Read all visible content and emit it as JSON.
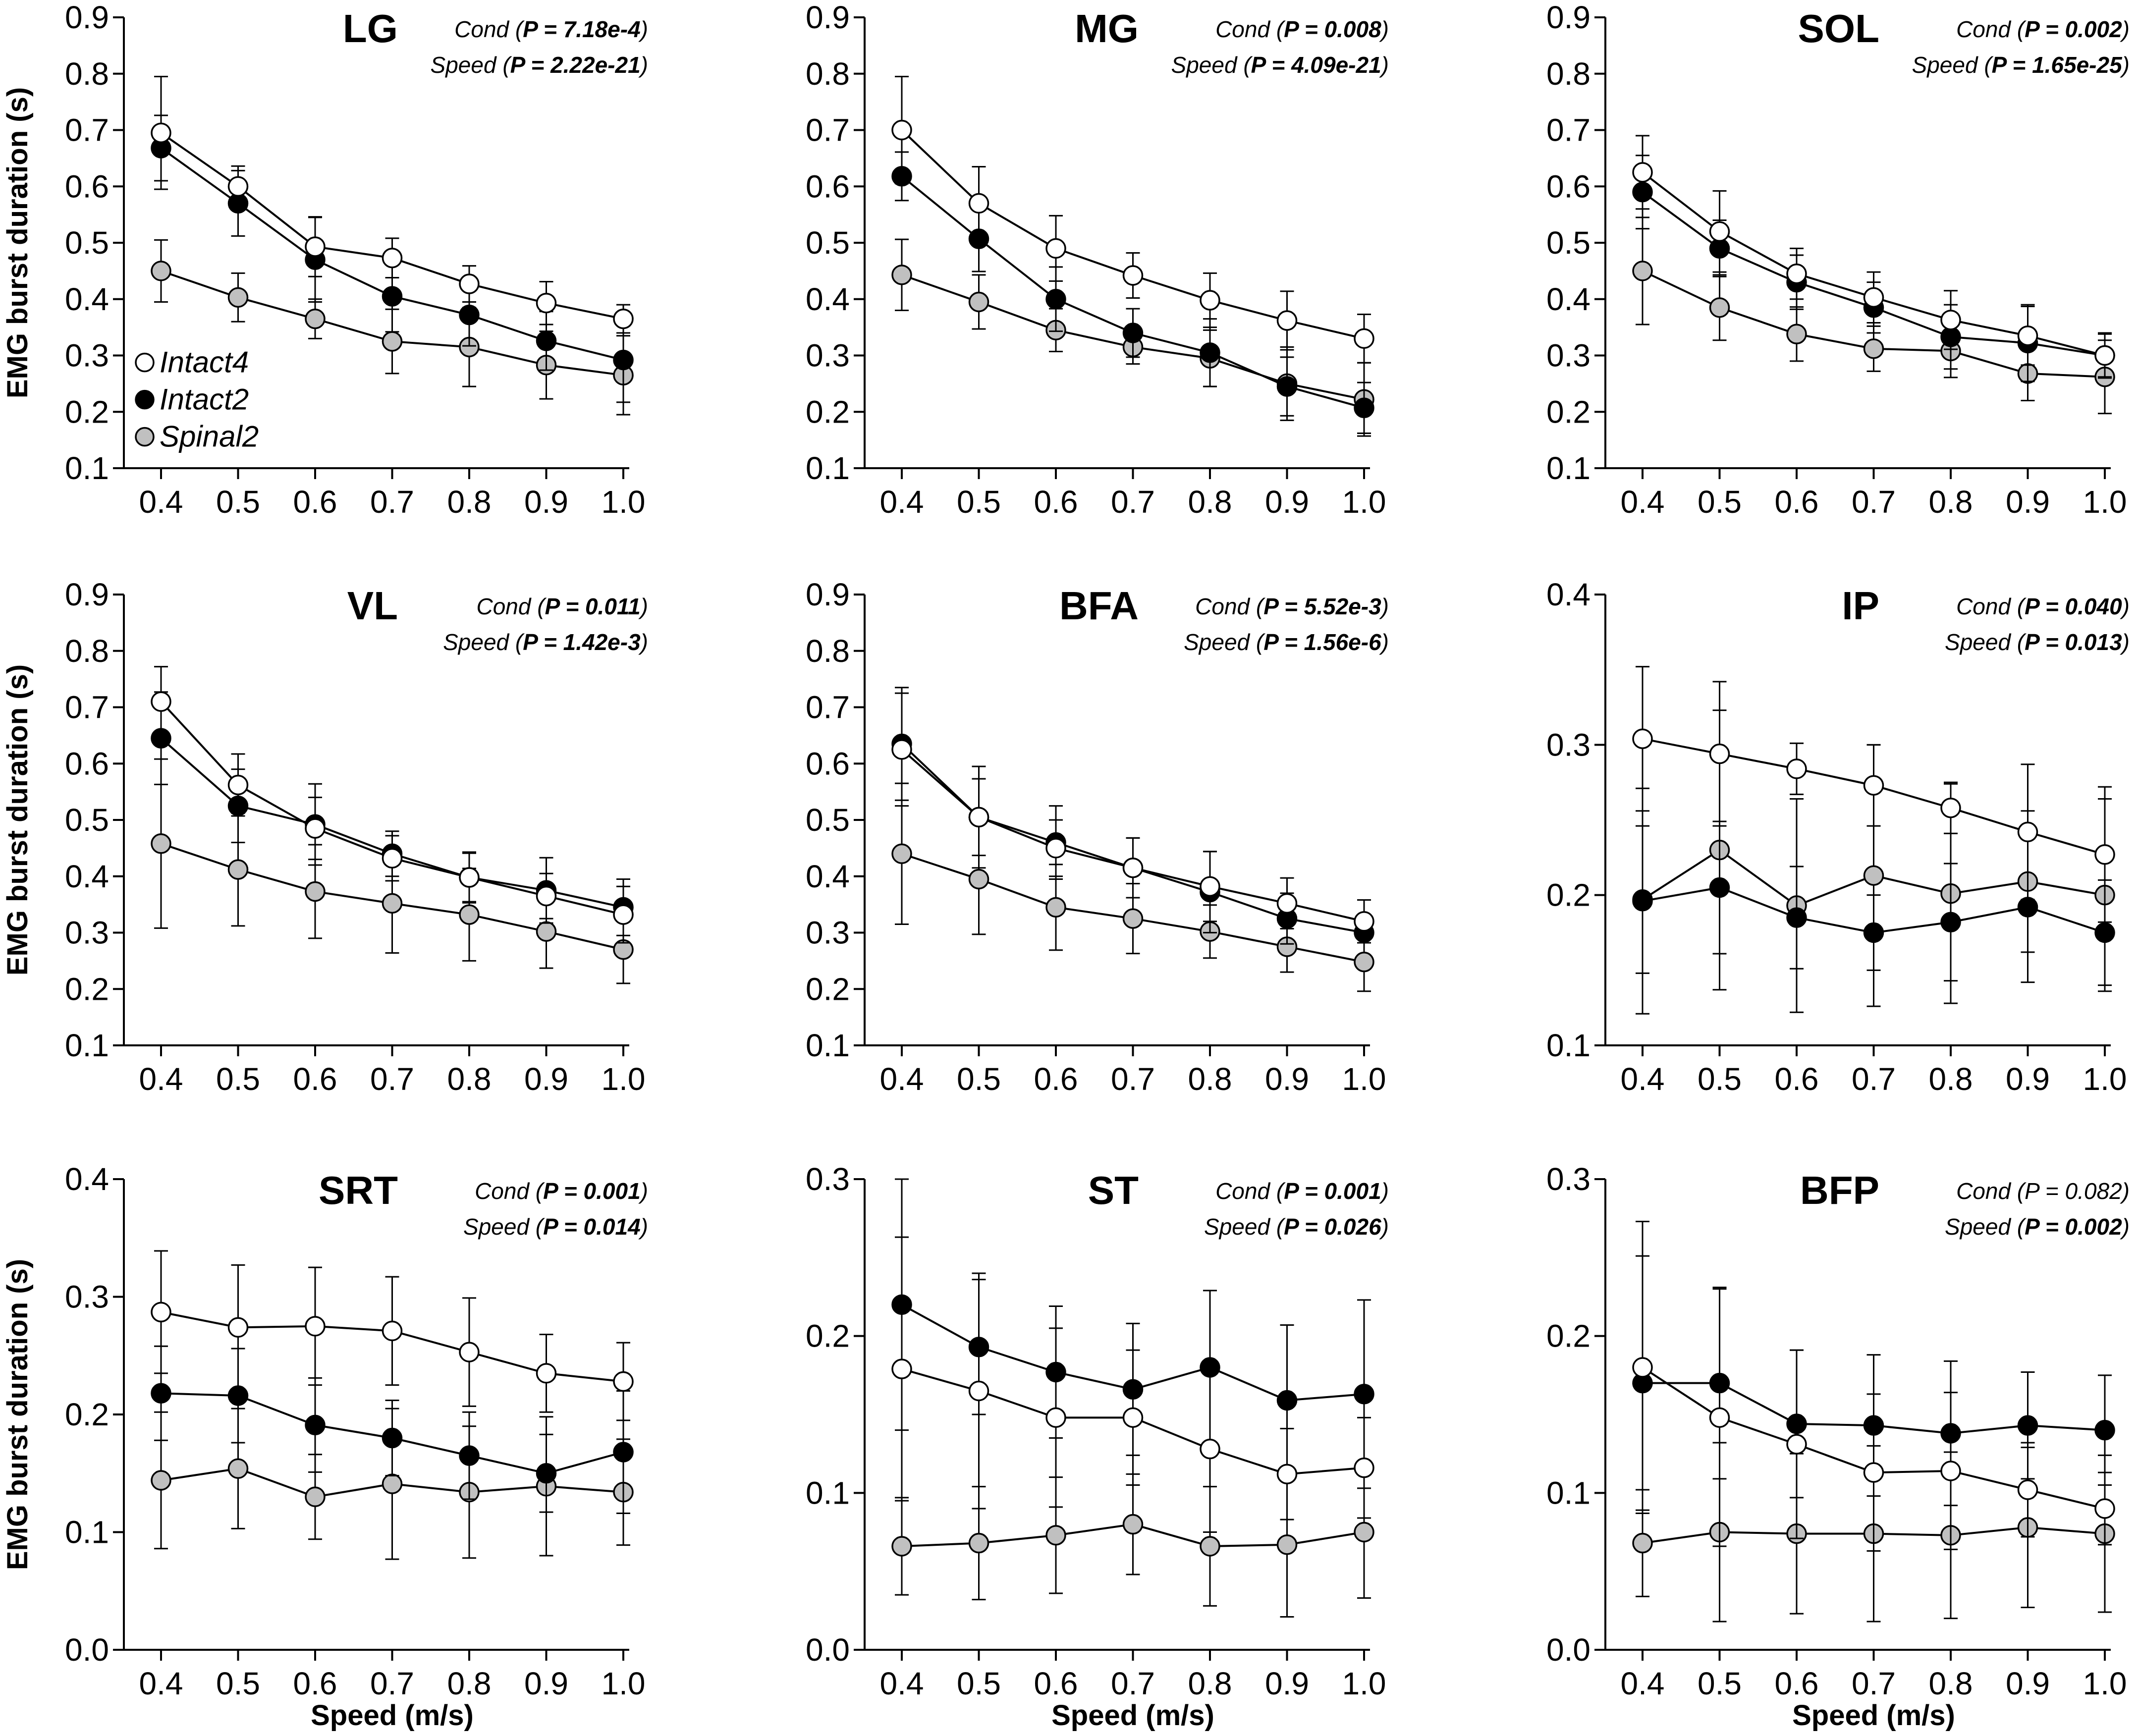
{
  "figure": {
    "y_axis_label": "EMG burst duration (s)",
    "x_axis_label": "Speed (m/s)"
  },
  "legend": [
    {
      "name": "Intact4",
      "fill": "#ffffff"
    },
    {
      "name": "Intact2",
      "fill": "#000000"
    },
    {
      "name": "Spinal2",
      "fill": "#c0c0c0"
    }
  ],
  "chart_data": [
    {
      "type": "line",
      "title": "LG",
      "cond_p": "7.18e-4",
      "speed_p": "2.22e-21",
      "cond_bold": true,
      "speed_bold": true,
      "xlabel": "",
      "ylabel": "EMG burst duration (s)",
      "ylim": [
        0.1,
        0.9
      ],
      "yticks": [
        "0.1",
        "0.2",
        "0.3",
        "0.4",
        "0.5",
        "0.6",
        "0.7",
        "0.8",
        "0.9"
      ],
      "x": [
        0.4,
        0.5,
        0.6,
        0.7,
        0.8,
        0.9,
        1.0
      ],
      "xticks": [
        "0.4",
        "0.5",
        "0.6",
        "0.7",
        "0.8",
        "0.9",
        "1.0"
      ],
      "show_legend": true,
      "series": [
        {
          "name": "Intact4",
          "values": [
            0.695,
            0.6,
            0.493,
            0.473,
            0.427,
            0.393,
            0.365
          ],
          "err": [
            0.1,
            0.036,
            0.053,
            0.035,
            0.032,
            0.038,
            0.025
          ]
        },
        {
          "name": "Intact2",
          "values": [
            0.668,
            0.57,
            0.47,
            0.405,
            0.372,
            0.326,
            0.292
          ],
          "err": [
            0.058,
            0.058,
            0.075,
            0.063,
            0.055,
            0.052,
            0.075
          ]
        },
        {
          "name": "Spinal2",
          "values": [
            0.45,
            0.403,
            0.365,
            0.325,
            0.315,
            0.283,
            0.265
          ],
          "err": [
            0.055,
            0.043,
            0.035,
            0.057,
            0.07,
            0.06,
            0.07
          ]
        }
      ]
    },
    {
      "type": "line",
      "title": "MG",
      "cond_p": "0.008",
      "speed_p": "4.09e-21",
      "cond_bold": true,
      "speed_bold": true,
      "xlabel": "",
      "ylabel": "",
      "ylim": [
        0.1,
        0.9
      ],
      "yticks": [
        "0.1",
        "0.2",
        "0.3",
        "0.4",
        "0.5",
        "0.6",
        "0.7",
        "0.8",
        "0.9"
      ],
      "x": [
        0.4,
        0.5,
        0.6,
        0.7,
        0.8,
        0.9,
        1.0
      ],
      "xticks": [
        "0.4",
        "0.5",
        "0.6",
        "0.7",
        "0.8",
        "0.9",
        "1.0"
      ],
      "show_legend": false,
      "series": [
        {
          "name": "Intact4",
          "values": [
            0.7,
            0.57,
            0.49,
            0.442,
            0.398,
            0.362,
            0.33
          ],
          "err": [
            0.095,
            0.065,
            0.058,
            0.04,
            0.048,
            0.052,
            0.043
          ]
        },
        {
          "name": "Intact2",
          "values": [
            0.618,
            0.507,
            0.4,
            0.34,
            0.305,
            0.245,
            0.207
          ],
          "err": [
            0.043,
            0.058,
            0.057,
            0.043,
            0.06,
            0.052,
            0.045
          ]
        },
        {
          "name": "Spinal2",
          "values": [
            0.443,
            0.395,
            0.345,
            0.315,
            0.295,
            0.25,
            0.222
          ],
          "err": [
            0.063,
            0.048,
            0.038,
            0.03,
            0.05,
            0.065,
            0.065
          ]
        }
      ]
    },
    {
      "type": "line",
      "title": "SOL",
      "cond_p": "0.002",
      "speed_p": "1.65e-25",
      "cond_bold": true,
      "speed_bold": true,
      "xlabel": "",
      "ylabel": "",
      "ylim": [
        0.1,
        0.9
      ],
      "yticks": [
        "0.1",
        "0.2",
        "0.3",
        "0.4",
        "0.5",
        "0.6",
        "0.7",
        "0.8",
        "0.9"
      ],
      "x": [
        0.4,
        0.5,
        0.6,
        0.7,
        0.8,
        0.9,
        1.0
      ],
      "xticks": [
        "0.4",
        "0.5",
        "0.6",
        "0.7",
        "0.8",
        "0.9",
        "1.0"
      ],
      "show_legend": false,
      "series": [
        {
          "name": "Intact4",
          "values": [
            0.625,
            0.52,
            0.445,
            0.403,
            0.363,
            0.335,
            0.3
          ],
          "err": [
            0.065,
            0.072,
            0.045,
            0.045,
            0.052,
            0.052,
            0.038
          ]
        },
        {
          "name": "Intact2",
          "values": [
            0.59,
            0.49,
            0.43,
            0.385,
            0.333,
            0.322,
            0.3
          ],
          "err": [
            0.065,
            0.05,
            0.048,
            0.045,
            0.057,
            0.068,
            0.04
          ]
        },
        {
          "name": "Spinal2",
          "values": [
            0.45,
            0.385,
            0.338,
            0.312,
            0.308,
            0.268,
            0.262
          ],
          "err": [
            0.095,
            0.058,
            0.048,
            0.04,
            0.047,
            0.048,
            0.065
          ]
        }
      ]
    },
    {
      "type": "line",
      "title": "VL",
      "cond_p": "0.011",
      "speed_p": "1.42e-3",
      "cond_bold": true,
      "speed_bold": true,
      "xlabel": "",
      "ylabel": "EMG burst duration (s)",
      "ylim": [
        0.1,
        0.9
      ],
      "yticks": [
        "0.1",
        "0.2",
        "0.3",
        "0.4",
        "0.5",
        "0.6",
        "0.7",
        "0.8",
        "0.9"
      ],
      "x": [
        0.4,
        0.5,
        0.6,
        0.7,
        0.8,
        0.9,
        1.0
      ],
      "xticks": [
        "0.4",
        "0.5",
        "0.6",
        "0.7",
        "0.8",
        "0.9",
        "1.0"
      ],
      "show_legend": false,
      "series": [
        {
          "name": "Intact4",
          "values": [
            0.71,
            0.562,
            0.485,
            0.432,
            0.398,
            0.365,
            0.332
          ],
          "err": [
            0.062,
            0.055,
            0.055,
            0.04,
            0.045,
            0.04,
            0.05
          ]
        },
        {
          "name": "Intact2",
          "values": [
            0.645,
            0.525,
            0.492,
            0.44,
            0.398,
            0.375,
            0.345
          ],
          "err": [
            0.082,
            0.065,
            0.072,
            0.04,
            0.043,
            0.058,
            0.05
          ]
        },
        {
          "name": "Spinal2",
          "values": [
            0.458,
            0.412,
            0.373,
            0.352,
            0.332,
            0.302,
            0.27
          ],
          "err": [
            0.15,
            0.1,
            0.083,
            0.088,
            0.082,
            0.065,
            0.06
          ]
        }
      ]
    },
    {
      "type": "line",
      "title": "BFA",
      "cond_p": "5.52e-3",
      "speed_p": "1.56e-6",
      "cond_bold": true,
      "speed_bold": true,
      "xlabel": "",
      "ylabel": "",
      "ylim": [
        0.1,
        0.9
      ],
      "yticks": [
        "0.1",
        "0.2",
        "0.3",
        "0.4",
        "0.5",
        "0.6",
        "0.7",
        "0.8",
        "0.9"
      ],
      "x": [
        0.4,
        0.5,
        0.6,
        0.7,
        0.8,
        0.9,
        1.0
      ],
      "xticks": [
        "0.4",
        "0.5",
        "0.6",
        "0.7",
        "0.8",
        "0.9",
        "1.0"
      ],
      "show_legend": false,
      "series": [
        {
          "name": "Intact4",
          "values": [
            0.625,
            0.505,
            0.45,
            0.415,
            0.382,
            0.352,
            0.32
          ],
          "err": [
            0.1,
            0.068,
            0.05,
            0.053,
            0.062,
            0.045,
            0.038
          ]
        },
        {
          "name": "Intact2",
          "values": [
            0.635,
            0.505,
            0.46,
            0.415,
            0.372,
            0.325,
            0.3
          ],
          "err": [
            0.1,
            0.09,
            0.065,
            0.053,
            0.072,
            0.045,
            0.018
          ]
        },
        {
          "name": "Spinal2",
          "values": [
            0.44,
            0.395,
            0.345,
            0.325,
            0.302,
            0.275,
            0.248
          ],
          "err": [
            0.125,
            0.098,
            0.076,
            0.062,
            0.047,
            0.045,
            0.052
          ]
        }
      ]
    },
    {
      "type": "line",
      "title": "IP",
      "cond_p": "0.040",
      "speed_p": "0.013",
      "cond_bold": true,
      "speed_bold": true,
      "xlabel": "",
      "ylabel": "",
      "ylim": [
        0.1,
        0.4
      ],
      "yticks": [
        "0.1",
        "0.2",
        "0.3",
        "0.4"
      ],
      "x": [
        0.4,
        0.5,
        0.6,
        0.7,
        0.8,
        0.9,
        1.0
      ],
      "xticks": [
        "0.4",
        "0.5",
        "0.6",
        "0.7",
        "0.8",
        "0.9",
        "1.0"
      ],
      "show_legend": false,
      "series": [
        {
          "name": "Intact4",
          "values": [
            0.304,
            0.294,
            0.284,
            0.273,
            0.258,
            0.242,
            0.227
          ],
          "err": [
            0.048,
            0.048,
            0.017,
            0.027,
            0.017,
            0.045,
            0.045
          ]
        },
        {
          "name": "Intact2",
          "values": [
            0.196,
            0.205,
            0.185,
            0.175,
            0.182,
            0.192,
            0.175
          ],
          "err": [
            0.075,
            0.044,
            0.034,
            0.025,
            0.039,
            0.05,
            0.035
          ]
        },
        {
          "name": "Spinal2",
          "values": [
            0.197,
            0.23,
            0.193,
            0.213,
            0.201,
            0.209,
            0.2
          ],
          "err": [
            0.049,
            0.093,
            0.071,
            0.087,
            0.073,
            0.047,
            0.064
          ]
        }
      ]
    },
    {
      "type": "line",
      "title": "SRT",
      "cond_p": "0.001",
      "speed_p": "0.014",
      "cond_bold": true,
      "speed_bold": true,
      "xlabel": "Speed (m/s)",
      "ylabel": "EMG burst duration (s)",
      "ylim": [
        0.0,
        0.4
      ],
      "yticks": [
        "0.0",
        "0.1",
        "0.2",
        "0.3",
        "0.4"
      ],
      "x": [
        0.4,
        0.5,
        0.6,
        0.7,
        0.8,
        0.9,
        1.0
      ],
      "xticks": [
        "0.4",
        "0.5",
        "0.6",
        "0.7",
        "0.8",
        "0.9",
        "1.0"
      ],
      "show_legend": false,
      "series": [
        {
          "name": "Intact4",
          "values": [
            0.287,
            0.274,
            0.275,
            0.271,
            0.253,
            0.235,
            0.228
          ],
          "err": [
            0.052,
            0.053,
            0.05,
            0.046,
            0.046,
            0.033,
            0.033
          ]
        },
        {
          "name": "Intact2",
          "values": [
            0.218,
            0.216,
            0.191,
            0.18,
            0.165,
            0.15,
            0.168
          ],
          "err": [
            0.04,
            0.04,
            0.04,
            0.032,
            0.037,
            0.033,
            0.052
          ]
        },
        {
          "name": "Spinal2",
          "values": [
            0.144,
            0.154,
            0.13,
            0.141,
            0.134,
            0.139,
            0.134
          ],
          "err": [
            0.058,
            0.051,
            0.036,
            0.064,
            0.056,
            0.059,
            0.045
          ]
        }
      ]
    },
    {
      "type": "line",
      "title": "ST",
      "cond_p": "0.001",
      "speed_p": "0.026",
      "cond_bold": true,
      "speed_bold": true,
      "xlabel": "Speed (m/s)",
      "ylabel": "",
      "ylim": [
        0.0,
        0.3
      ],
      "yticks": [
        "0.0",
        "0.1",
        "0.2",
        "0.3"
      ],
      "x": [
        0.4,
        0.5,
        0.6,
        0.7,
        0.8,
        0.9,
        1.0
      ],
      "xticks": [
        "0.4",
        "0.5",
        "0.6",
        "0.7",
        "0.8",
        "0.9",
        "1.0"
      ],
      "show_legend": false,
      "series": [
        {
          "name": "Intact4",
          "values": [
            0.179,
            0.165,
            0.148,
            0.148,
            0.128,
            0.112,
            0.116
          ],
          "err": [
            0.084,
            0.075,
            0.057,
            0.043,
            0.053,
            0.029,
            0.032
          ]
        },
        {
          "name": "Intact2",
          "values": [
            0.22,
            0.193,
            0.177,
            0.166,
            0.18,
            0.159,
            0.163
          ],
          "err": [
            0.08,
            0.043,
            0.042,
            0.042,
            0.049,
            0.048,
            0.06
          ]
        },
        {
          "name": "Spinal2",
          "values": [
            0.066,
            0.068,
            0.073,
            0.08,
            0.066,
            0.067,
            0.075
          ],
          "err": [
            0.031,
            0.036,
            0.037,
            0.032,
            0.038,
            0.046,
            0.042
          ]
        }
      ]
    },
    {
      "type": "line",
      "title": "BFP",
      "cond_p": "0.082",
      "speed_p": "0.002",
      "cond_bold": false,
      "speed_bold": true,
      "xlabel": "Speed (m/s)",
      "ylabel": "",
      "ylim": [
        0.0,
        0.3
      ],
      "yticks": [
        "0.0",
        "0.1",
        "0.2",
        "0.3"
      ],
      "x": [
        0.4,
        0.5,
        0.6,
        0.7,
        0.8,
        0.9,
        1.0
      ],
      "xticks": [
        "0.4",
        "0.5",
        "0.6",
        "0.7",
        "0.8",
        "0.9",
        "1.0"
      ],
      "show_legend": false,
      "series": [
        {
          "name": "Intact4",
          "values": [
            0.18,
            0.148,
            0.131,
            0.113,
            0.114,
            0.102,
            0.09
          ],
          "err": [
            0.093,
            0.082,
            0.06,
            0.05,
            0.05,
            0.03,
            0.023
          ]
        },
        {
          "name": "Intact2",
          "values": [
            0.17,
            0.17,
            0.144,
            0.143,
            0.138,
            0.143,
            0.14
          ],
          "err": [
            0.081,
            0.061,
            0.047,
            0.045,
            0.046,
            0.034,
            0.035
          ]
        },
        {
          "name": "Spinal2",
          "values": [
            0.068,
            0.075,
            0.074,
            0.074,
            0.073,
            0.078,
            0.074
          ],
          "err": [
            0.034,
            0.057,
            0.051,
            0.056,
            0.053,
            0.051,
            0.05
          ]
        }
      ]
    }
  ]
}
